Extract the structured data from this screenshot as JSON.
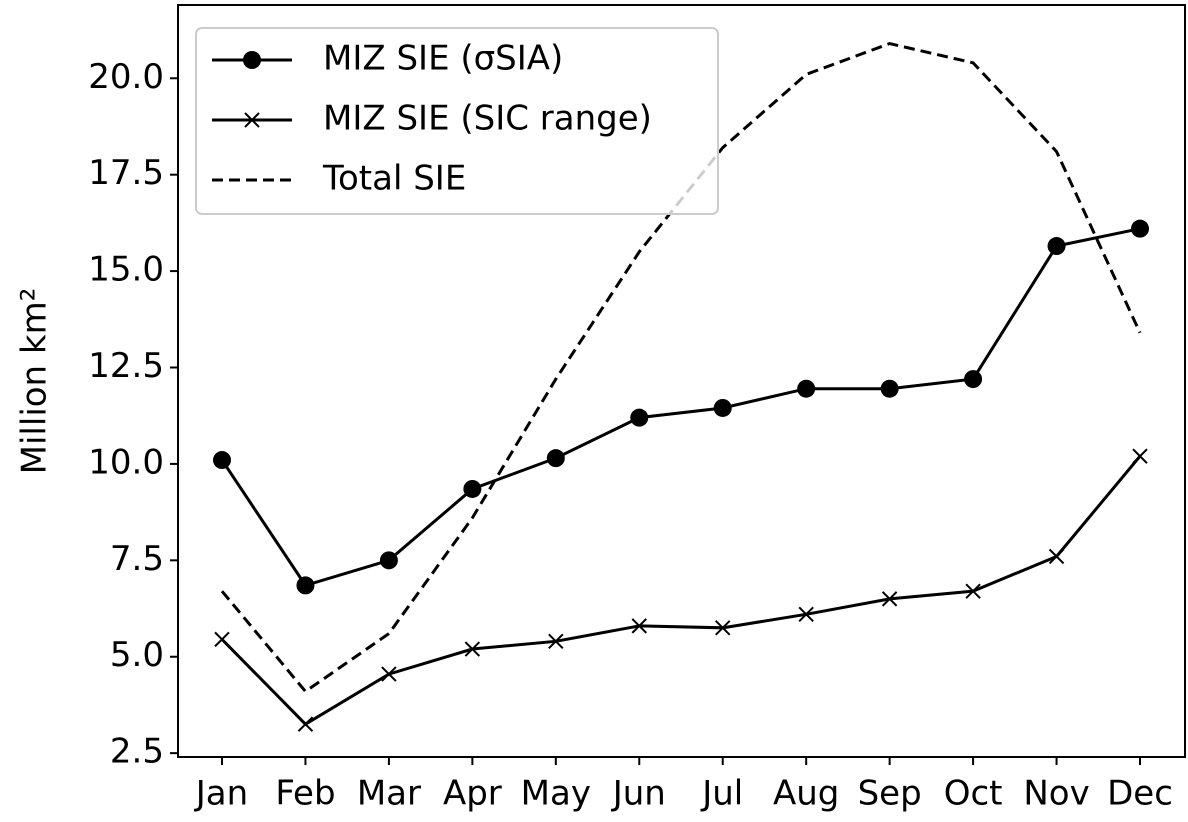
{
  "chart_data": {
    "type": "line",
    "ylabel": "Million km²",
    "categories": [
      "Jan",
      "Feb",
      "Mar",
      "Apr",
      "May",
      "Jun",
      "Jul",
      "Aug",
      "Sep",
      "Oct",
      "Nov",
      "Dec"
    ],
    "series": [
      {
        "name": "MIZ SIE (σSIA)",
        "color": "#000000",
        "marker": "o",
        "linestyle": "solid",
        "values": [
          10.1,
          6.85,
          7.5,
          9.35,
          10.15,
          11.2,
          11.45,
          11.95,
          11.95,
          12.2,
          15.65,
          16.1
        ]
      },
      {
        "name": "MIZ SIE (SIC range)",
        "color": "#000000",
        "marker": "x",
        "linestyle": "solid",
        "values": [
          5.45,
          3.25,
          4.55,
          5.2,
          5.4,
          5.8,
          5.75,
          6.1,
          6.5,
          6.7,
          7.6,
          10.2
        ]
      },
      {
        "name": "Total SIE",
        "color": "#000000",
        "linestyle": "dashed",
        "values": [
          6.7,
          4.1,
          5.6,
          8.6,
          12.2,
          15.5,
          18.2,
          20.1,
          20.9,
          20.4,
          18.1,
          13.4
        ]
      }
    ],
    "ylim": [
      2.4,
      21.9
    ],
    "yticks": [
      {
        "value": 2.5,
        "label": "2.5"
      },
      {
        "value": 5,
        "label": "5.0"
      },
      {
        "value": 7.5,
        "label": "7.5"
      },
      {
        "value": 10,
        "label": "10.0"
      },
      {
        "value": 12.5,
        "label": "12.5"
      },
      {
        "value": 15,
        "label": "15.0"
      },
      {
        "value": 17.5,
        "label": "17.5"
      },
      {
        "value": 20,
        "label": "20.0"
      }
    ],
    "legend": "upper left"
  }
}
